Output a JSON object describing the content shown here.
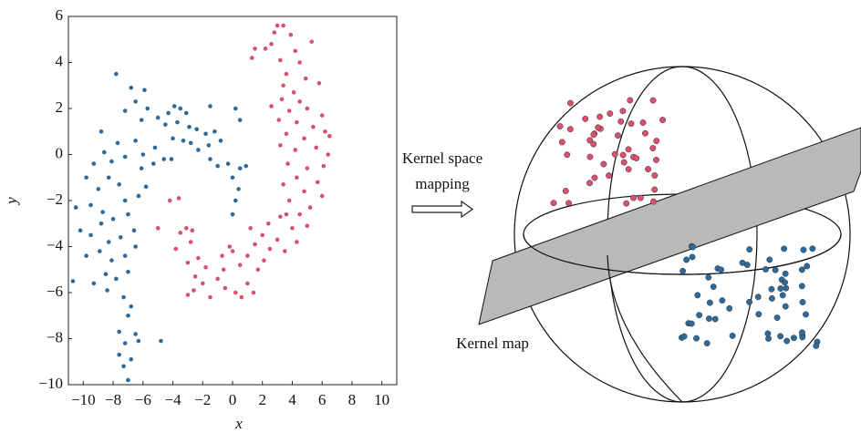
{
  "chart_data": {
    "type": "scatter",
    "xlabel": "x",
    "ylabel": "y",
    "xlim": [
      -11,
      11
    ],
    "ylim": [
      -10,
      6
    ],
    "xticks": [
      {
        "value": -10,
        "label": "−10"
      },
      {
        "value": -8,
        "label": "−8"
      },
      {
        "value": -6,
        "label": "−6"
      },
      {
        "value": -4,
        "label": "−4"
      },
      {
        "value": -2,
        "label": "−2"
      },
      0,
      2,
      4,
      6,
      8,
      10
    ],
    "yticks": [
      {
        "value": -10,
        "label": "−10"
      },
      {
        "value": -8,
        "label": "−8"
      },
      {
        "value": -6,
        "label": "−6"
      },
      {
        "value": -4,
        "label": "−4"
      },
      {
        "value": -2,
        "label": "−2"
      },
      0,
      2,
      4,
      6
    ],
    "grid": false,
    "series": [
      {
        "color": "#2c6a9b",
        "x": [
          -7.8,
          -6.8,
          -5.9,
          -6.5,
          -5.7,
          -7.2,
          -6.1,
          -5.0,
          -4.3,
          -3.9,
          -3.5,
          -3.1,
          -4.5,
          -3.7,
          -2.9,
          -1.5,
          -2.4,
          -1.8,
          -1.2,
          0.2,
          0.5,
          -0.8,
          -3.3,
          -4.0,
          -2.8,
          -5.2,
          -6.5,
          -7.7,
          -8.8,
          -8.6,
          -9.3,
          -8.1,
          -7.2,
          -6.1,
          -5.3,
          -4.6,
          -1.5,
          -1.0,
          -0.3,
          0.5,
          0.9,
          0.0,
          0.4,
          0.2,
          0.0,
          -9.8,
          -9.0,
          -8.3,
          -7.6,
          -7.2,
          -6.3,
          -5.8,
          -10.5,
          -9.5,
          -8.7,
          -8.0,
          -7.0,
          -10.2,
          -9.5,
          -8.8,
          -8.3,
          -7.5,
          -6.6,
          -9.8,
          -8.9,
          -8.1,
          -7.2,
          -6.5,
          -10.7,
          -9.3,
          -8.5,
          -7.8,
          -7.0,
          -8.4,
          -7.3,
          -6.8,
          -7.0,
          -7.6,
          -6.5,
          -7.2,
          -7.6,
          -6.8,
          -7.3,
          -7.0,
          -4.8,
          -6.3,
          -6.0,
          -4.1,
          -2.3,
          -1.6
        ],
        "y": [
          3.5,
          2.9,
          2.8,
          2.3,
          2.0,
          1.9,
          1.5,
          1.6,
          1.8,
          2.1,
          2.0,
          1.8,
          1.3,
          1.4,
          1.2,
          2.1,
          1.1,
          0.9,
          1.0,
          2.0,
          1.5,
          0.6,
          0.6,
          0.7,
          0.5,
          0.3,
          0.6,
          0.5,
          1.0,
          0.1,
          -0.4,
          -0.3,
          -0.1,
          -0.6,
          -0.4,
          -0.2,
          -0.2,
          -0.5,
          -0.4,
          -0.6,
          -0.5,
          -1.0,
          -1.5,
          -2.0,
          -2.6,
          -1.0,
          -1.5,
          -1.0,
          -1.3,
          -2.0,
          -1.8,
          -1.4,
          -2.3,
          -2.2,
          -2.5,
          -2.8,
          -2.6,
          -3.3,
          -3.5,
          -3.0,
          -3.8,
          -3.6,
          -3.3,
          -4.4,
          -4.2,
          -4.6,
          -4.4,
          -4.0,
          -5.5,
          -5.6,
          -5.2,
          -5.4,
          -5.1,
          -5.9,
          -6.2,
          -6.6,
          -7.0,
          -7.7,
          -7.8,
          -8.2,
          -8.7,
          -8.9,
          -9.2,
          -9.8,
          -8.1,
          -8.1,
          0.0,
          -0.2,
          0.2,
          0.4
        ]
      },
      {
        "color": "#d9506e",
        "x": [
          2.6,
          2.2,
          1.5,
          1.3,
          3.0,
          3.4,
          3.9,
          2.8,
          4.2,
          5.3,
          3.2,
          4.5,
          3.6,
          4.9,
          3.4,
          5.8,
          4.1,
          3.3,
          2.6,
          4.5,
          5.0,
          3.8,
          6.0,
          3.1,
          4.3,
          5.4,
          6.2,
          3.6,
          4.8,
          6.5,
          3.2,
          4.2,
          5.6,
          6.4,
          3.7,
          5.0,
          6.1,
          4.3,
          5.7,
          3.4,
          4.8,
          6.0,
          3.8,
          5.2,
          4.5,
          3.2,
          3.6,
          2.4,
          4.0,
          5.0,
          1.2,
          2.0,
          3.0,
          4.3,
          1.5,
          2.5,
          3.5,
          1.0,
          2.1,
          0.5,
          1.7,
          -0.2,
          0.0,
          -0.7,
          -0.6,
          -0.5,
          0.2,
          1.0,
          0.6,
          1.4,
          -1.0,
          -1.5,
          -2.0,
          -1.8,
          -2.5,
          -2.3,
          -3.0,
          -2.8,
          -3.1,
          -2.7,
          -3.8,
          -3.5,
          -5.0,
          -3.0,
          -4.2,
          -3.6,
          -2.6
        ],
        "y": [
          4.8,
          4.6,
          4.6,
          4.2,
          5.6,
          5.6,
          5.2,
          5.3,
          4.5,
          4.9,
          4.1,
          4.0,
          3.5,
          3.3,
          3.0,
          3.1,
          2.7,
          2.4,
          2.1,
          2.3,
          2.0,
          1.9,
          1.7,
          1.5,
          1.4,
          1.2,
          1.0,
          0.9,
          0.7,
          0.8,
          0.4,
          0.2,
          0.3,
          0.0,
          -0.4,
          -0.6,
          -0.5,
          -1.0,
          -1.2,
          -1.3,
          -1.6,
          -1.8,
          -2.0,
          -2.3,
          -2.6,
          -2.7,
          -2.6,
          -3.0,
          -3.2,
          -3.1,
          -3.2,
          -3.5,
          -3.7,
          -3.8,
          -3.9,
          -4.1,
          -4.2,
          -4.4,
          -4.6,
          -4.8,
          -5.0,
          -4.0,
          -4.2,
          -4.4,
          -5.0,
          -5.8,
          -6.0,
          -5.6,
          -6.2,
          -6.0,
          -5.4,
          -6.2,
          -5.6,
          -4.9,
          -5.3,
          -4.5,
          -4.7,
          -3.8,
          -3.2,
          -3.3,
          -4.1,
          -3.4,
          -3.2,
          -6.1,
          -2.0,
          -1.9,
          -5.9
        ]
      }
    ],
    "annotations": [
      "Kernel space",
      "mapping",
      "Kernel map"
    ]
  }
}
